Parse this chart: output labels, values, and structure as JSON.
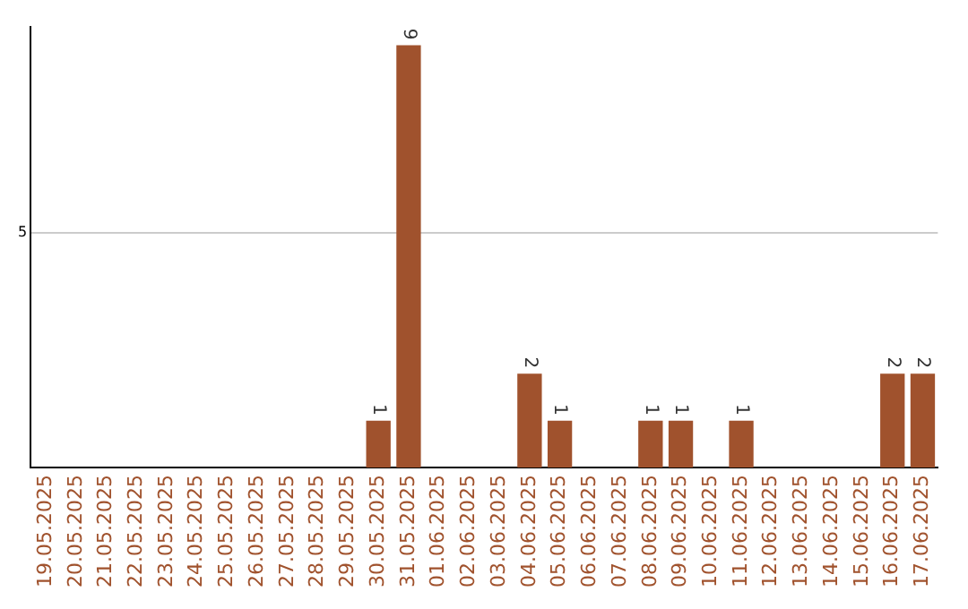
{
  "chart_data": {
    "type": "bar",
    "categories": [
      "19.05.2025",
      "20.05.2025",
      "21.05.2025",
      "22.05.2025",
      "23.05.2025",
      "24.05.2025",
      "25.05.2025",
      "26.05.2025",
      "27.05.2025",
      "28.05.2025",
      "29.05.2025",
      "30.05.2025",
      "31.05.2025",
      "01.06.2025",
      "02.06.2025",
      "03.06.2025",
      "04.06.2025",
      "05.06.2025",
      "06.06.2025",
      "07.06.2025",
      "08.06.2025",
      "09.06.2025",
      "10.06.2025",
      "11.06.2025",
      "12.06.2025",
      "13.06.2025",
      "14.06.2025",
      "15.06.2025",
      "16.06.2025",
      "17.06.2025"
    ],
    "values": [
      0,
      0,
      0,
      0,
      0,
      0,
      0,
      0,
      0,
      0,
      0,
      1,
      9,
      0,
      0,
      0,
      2,
      1,
      0,
      0,
      1,
      1,
      0,
      1,
      0,
      0,
      0,
      0,
      2,
      2
    ],
    "value_labels": [
      null,
      null,
      null,
      null,
      null,
      null,
      null,
      null,
      null,
      null,
      null,
      "1",
      "9",
      null,
      null,
      null,
      "2",
      "1",
      null,
      null,
      "1",
      "1",
      null,
      "1",
      null,
      null,
      null,
      null,
      "2",
      "2"
    ],
    "color": "#a0522d",
    "ylim": [
      0,
      9.4
    ],
    "yticks": [
      5
    ],
    "grid": "y",
    "legend": false
  }
}
